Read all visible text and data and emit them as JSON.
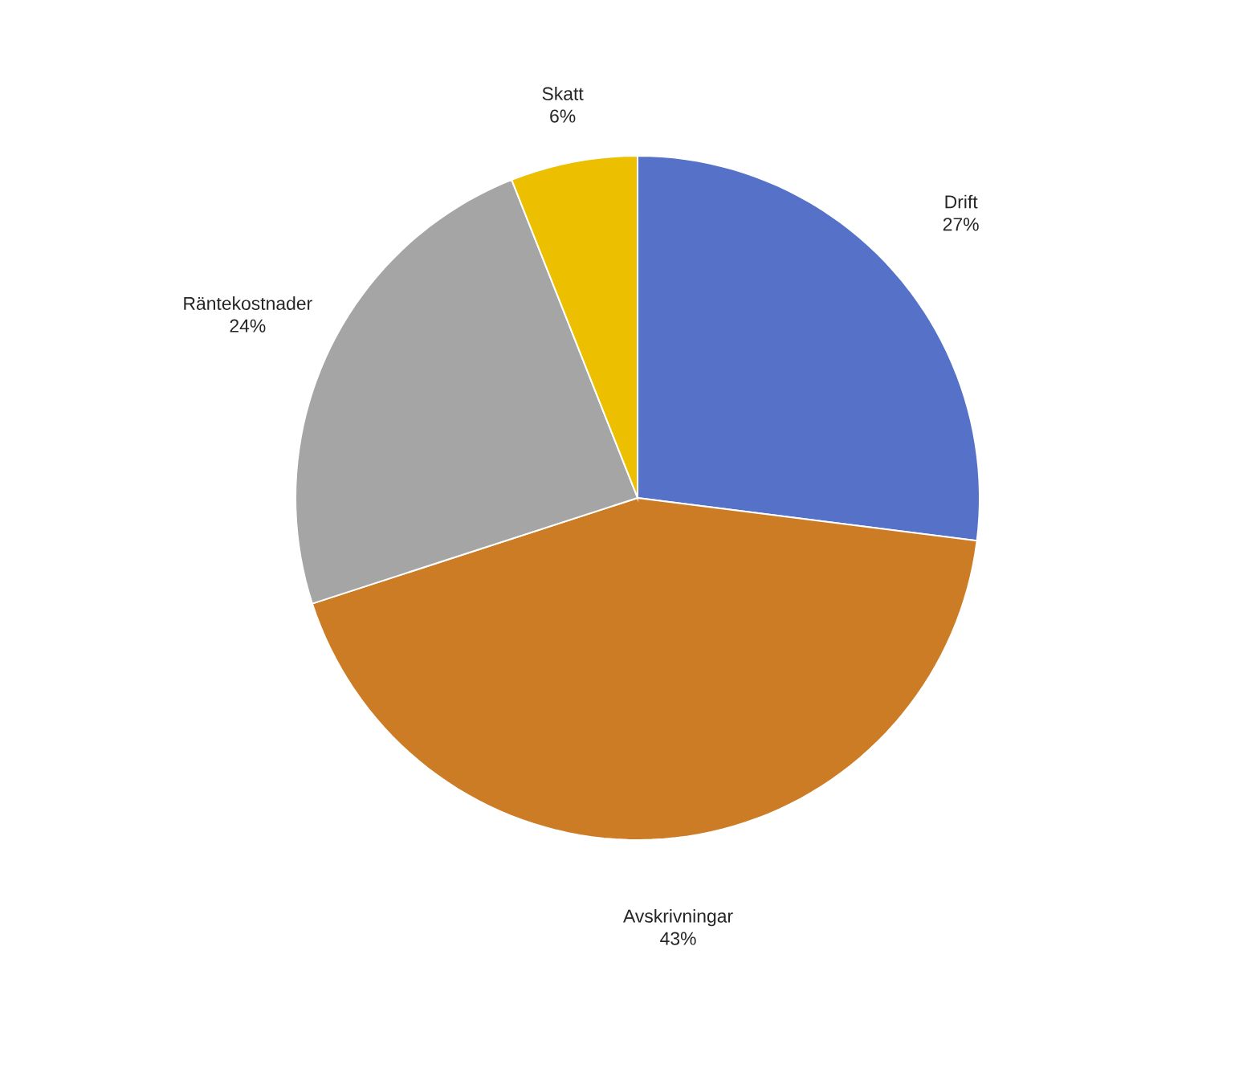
{
  "chart_data": {
    "type": "pie",
    "categories": [
      "Drift",
      "Avskrivningar",
      "Räntekostnader",
      "Skatt"
    ],
    "values": [
      27,
      43,
      24,
      6
    ],
    "value_labels": [
      "27%",
      "43%",
      "24%",
      "6%"
    ],
    "colors": [
      "#5572c8",
      "#cd7c26",
      "#a5a5a5",
      "#ecc000"
    ]
  }
}
